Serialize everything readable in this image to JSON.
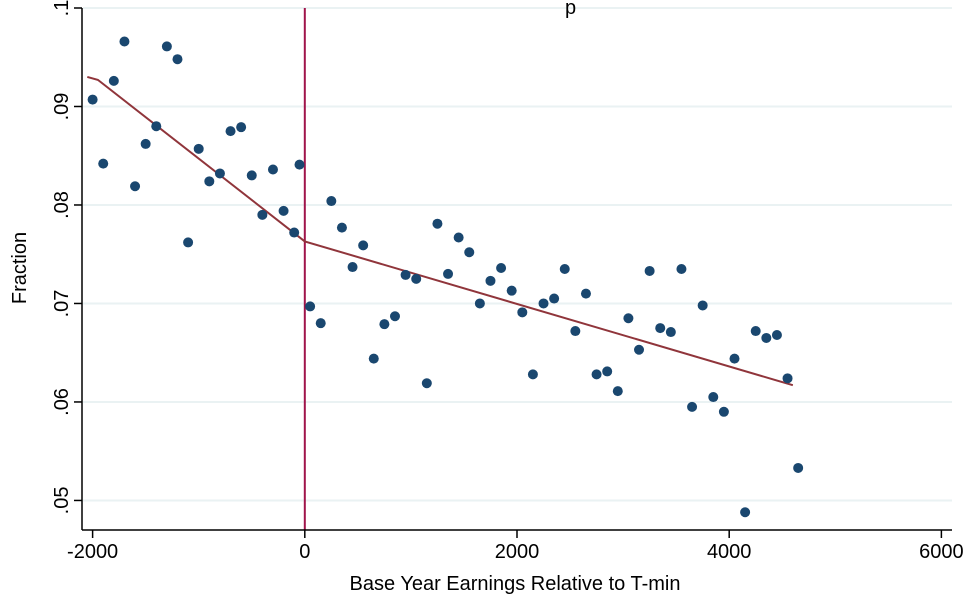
{
  "chart_data": {
    "type": "scatter",
    "title": "p",
    "xlabel": "Base Year Earnings Relative to T-min",
    "ylabel": "Fraction",
    "xlim": [
      -2100,
      6100
    ],
    "ylim": [
      0.047,
      0.1
    ],
    "x_ticks": [
      -2000,
      0,
      2000,
      4000,
      6000
    ],
    "x_tick_labels": [
      "-2000",
      "0",
      "2000",
      "4000",
      "6000"
    ],
    "y_ticks": [
      0.05,
      0.06,
      0.07,
      0.08,
      0.09,
      0.1
    ],
    "y_tick_labels": [
      ".05",
      ".06",
      ".07",
      ".08",
      ".09",
      ".1"
    ],
    "grid": true,
    "vline_x": 0,
    "colors": {
      "points": "#1a476f",
      "fit": "#90353b",
      "vline": "#a0144a",
      "grid": "#eaf2f3"
    },
    "points": [
      [
        -2000,
        0.0907
      ],
      [
        -1900,
        0.0842
      ],
      [
        -1800,
        0.0926
      ],
      [
        -1700,
        0.0966
      ],
      [
        -1600,
        0.0819
      ],
      [
        -1500,
        0.0862
      ],
      [
        -1400,
        0.088
      ],
      [
        -1300,
        0.0961
      ],
      [
        -1200,
        0.0948
      ],
      [
        -1100,
        0.0762
      ],
      [
        -1000,
        0.0857
      ],
      [
        -900,
        0.0824
      ],
      [
        -800,
        0.0832
      ],
      [
        -700,
        0.0875
      ],
      [
        -600,
        0.0879
      ],
      [
        -500,
        0.083
      ],
      [
        -400,
        0.079
      ],
      [
        -300,
        0.0836
      ],
      [
        -200,
        0.0794
      ],
      [
        -100,
        0.0772
      ],
      [
        -50,
        0.0841
      ],
      [
        50,
        0.0697
      ],
      [
        150,
        0.068
      ],
      [
        250,
        0.0804
      ],
      [
        350,
        0.0777
      ],
      [
        450,
        0.0737
      ],
      [
        550,
        0.0759
      ],
      [
        650,
        0.0644
      ],
      [
        750,
        0.0679
      ],
      [
        850,
        0.0687
      ],
      [
        950,
        0.0729
      ],
      [
        1050,
        0.0725
      ],
      [
        1150,
        0.0619
      ],
      [
        1250,
        0.0781
      ],
      [
        1350,
        0.073
      ],
      [
        1450,
        0.0767
      ],
      [
        1550,
        0.0752
      ],
      [
        1650,
        0.07
      ],
      [
        1750,
        0.0723
      ],
      [
        1850,
        0.0736
      ],
      [
        1950,
        0.0713
      ],
      [
        2050,
        0.0691
      ],
      [
        2150,
        0.0628
      ],
      [
        2250,
        0.07
      ],
      [
        2350,
        0.0705
      ],
      [
        2450,
        0.0735
      ],
      [
        2550,
        0.0672
      ],
      [
        2650,
        0.071
      ],
      [
        2750,
        0.0628
      ],
      [
        2850,
        0.0631
      ],
      [
        2950,
        0.0611
      ],
      [
        3050,
        0.0685
      ],
      [
        3150,
        0.0653
      ],
      [
        3250,
        0.0733
      ],
      [
        3350,
        0.0675
      ],
      [
        3450,
        0.0671
      ],
      [
        3550,
        0.0735
      ],
      [
        3650,
        0.0595
      ],
      [
        3750,
        0.0698
      ],
      [
        3850,
        0.0605
      ],
      [
        3950,
        0.059
      ],
      [
        4050,
        0.0644
      ],
      [
        4150,
        0.0488
      ],
      [
        4250,
        0.0672
      ],
      [
        4350,
        0.0665
      ],
      [
        4450,
        0.0668
      ],
      [
        4550,
        0.0624
      ],
      [
        4650,
        0.0533
      ]
    ],
    "fit_line": [
      [
        -2050,
        0.093
      ],
      [
        -1950,
        0.0927
      ],
      [
        0,
        0.0763
      ],
      [
        4600,
        0.0617
      ]
    ]
  }
}
